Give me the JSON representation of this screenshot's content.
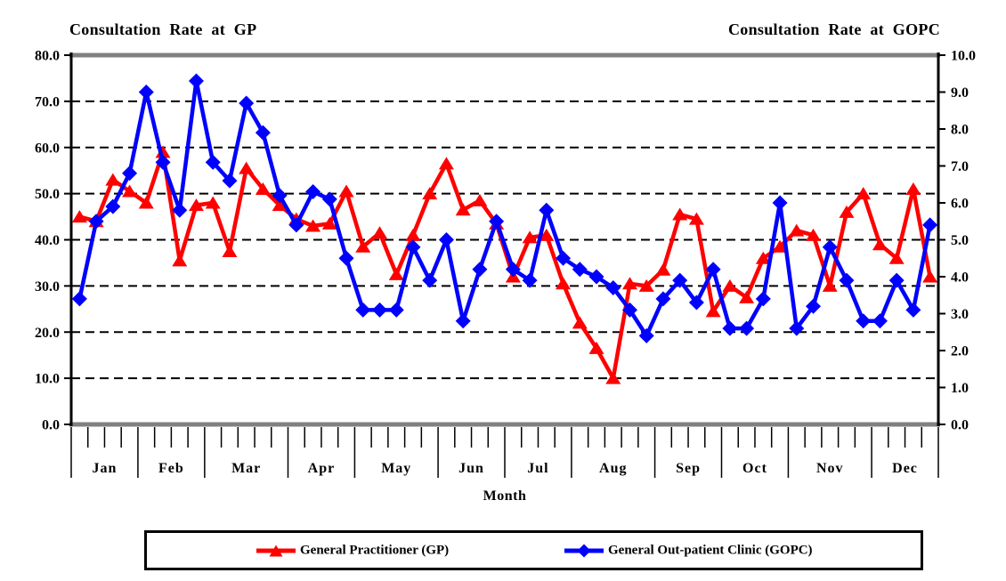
{
  "chart_data": {
    "type": "line",
    "title_left": "Consultation Rate at GP",
    "title_right": "Consultation Rate at GOPC",
    "xlabel": "Month",
    "x_unit": "week",
    "months": [
      {
        "label": "Jan",
        "weeks": 4
      },
      {
        "label": "Feb",
        "weeks": 4
      },
      {
        "label": "Mar",
        "weeks": 5
      },
      {
        "label": "Apr",
        "weeks": 4
      },
      {
        "label": "May",
        "weeks": 5
      },
      {
        "label": "Jun",
        "weeks": 4
      },
      {
        "label": "Jul",
        "weeks": 4
      },
      {
        "label": "Aug",
        "weeks": 5
      },
      {
        "label": "Sep",
        "weeks": 4
      },
      {
        "label": "Oct",
        "weeks": 4
      },
      {
        "label": "Nov",
        "weeks": 5
      },
      {
        "label": "Dec",
        "weeks": 4
      }
    ],
    "left_axis": {
      "min": 0,
      "max": 80,
      "step": 10,
      "tick_labels": [
        "0.0",
        "10.0",
        "20.0",
        "30.0",
        "40.0",
        "50.0",
        "60.0",
        "70.0",
        "80.0"
      ]
    },
    "right_axis": {
      "min": 0,
      "max": 10,
      "step": 1,
      "tick_labels": [
        "0.0",
        "1.0",
        "2.0",
        "3.0",
        "4.0",
        "5.0",
        "6.0",
        "7.0",
        "8.0",
        "9.0",
        "10.0"
      ]
    },
    "grid": {
      "horizontal_dashed_at": [
        10,
        20,
        30,
        40,
        50,
        60,
        70
      ],
      "color": "#000000"
    },
    "frame": {
      "top_bottom_color": "#808080",
      "axis_color": "#000000"
    },
    "legend_position": "bottom",
    "series": [
      {
        "id": "gp",
        "name": "General Practitioner (GP)",
        "axis": "left",
        "color": "#ff0000",
        "marker": "triangle",
        "values": [
          45,
          44,
          53,
          50.5,
          48,
          59,
          35.5,
          47.5,
          48,
          37.5,
          55.5,
          51,
          47.5,
          44.5,
          43,
          43.5,
          50.5,
          38.5,
          41.5,
          32.5,
          41,
          50,
          56.5,
          46.5,
          48.5,
          43.5,
          32,
          40.5,
          41,
          30.5,
          22,
          16.5,
          10,
          30.5,
          30,
          33.5,
          45.5,
          44.5,
          24.5,
          30,
          27.5,
          36,
          38.5,
          42,
          41,
          30,
          46,
          50,
          39,
          36,
          51,
          32
        ]
      },
      {
        "id": "gopc",
        "name": "General Out-patient Clinic (GOPC)",
        "axis": "right",
        "color": "#0000ff",
        "marker": "diamond",
        "values": [
          3.4,
          5.5,
          5.9,
          6.8,
          9.0,
          7.1,
          5.8,
          9.3,
          7.1,
          6.6,
          8.7,
          7.9,
          6.2,
          5.4,
          6.3,
          6.1,
          4.5,
          3.1,
          3.1,
          3.1,
          4.8,
          3.9,
          5.0,
          2.8,
          4.2,
          5.5,
          4.2,
          3.9,
          5.8,
          4.5,
          4.2,
          4.0,
          3.7,
          3.1,
          2.4,
          3.4,
          3.9,
          3.3,
          4.2,
          2.6,
          2.6,
          3.4,
          6.0,
          2.6,
          3.2,
          4.8,
          3.9,
          2.8,
          2.8,
          3.9,
          3.1,
          5.4
        ]
      }
    ]
  }
}
